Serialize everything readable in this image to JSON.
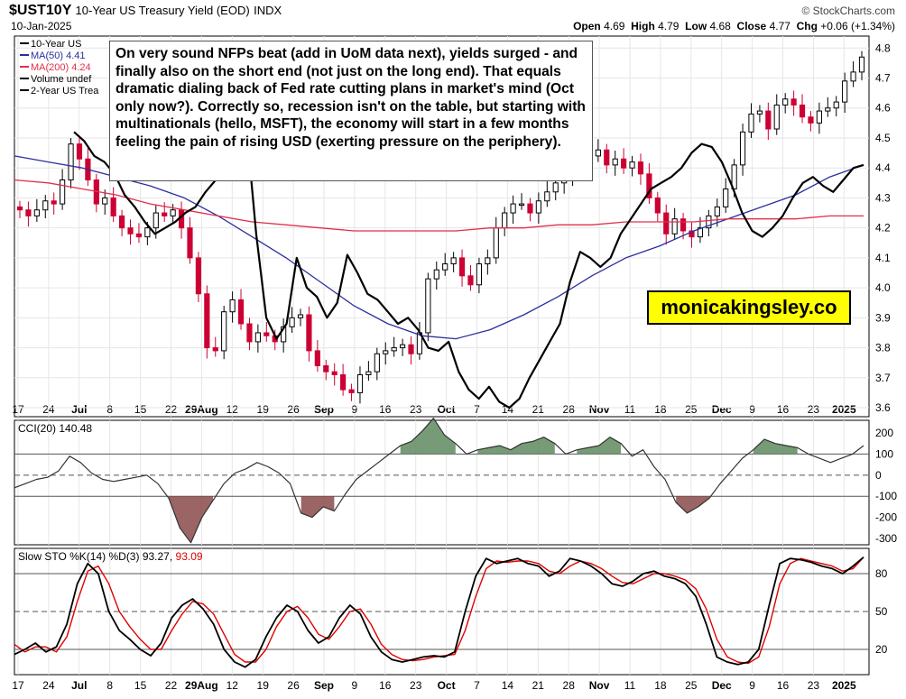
{
  "header": {
    "symbol": "$UST10Y",
    "description": "10-Year US Treasury Yield (EOD)",
    "exchange": "INDX",
    "date": "10-Jan-2025",
    "brand": "© StockCharts.com",
    "open_label": "Open",
    "open": "4.69",
    "high_label": "High",
    "high": "4.79",
    "low_label": "Low",
    "low": "4.68",
    "close_label": "Close",
    "close": "4.77",
    "chg_label": "Chg",
    "chg": "+0.06 (+1.34%)"
  },
  "legend": {
    "price": "10-Year US",
    "ma50": "MA(50) 4.41",
    "ma200": "MA(200) 4.24",
    "volume": "Volume undef",
    "two_year": "2-Year US Trea"
  },
  "annotation": "On very sound NFPs beat (add in UoM data next), yields surged - and finally also on the short end (not just on the long end). That equals dramatic dialing back of Fed rate cutting plans in market's mind (Oct only now?). Correctly so, recession isn't on the table, but starting with multinationals (hello, MSFT), the economy will start in a few months feeling the pain of rising USD (exerting pressure on the periphery).",
  "watermark": "monicakingsley.co",
  "colors": {
    "up": "#000000",
    "down": "#cc0033",
    "ma50": "#2b2f9c",
    "ma200": "#e0304a",
    "two_year": "#000000",
    "cci_fill_pos": "#5f8a5f",
    "cci_fill_neg": "#8a4a4a",
    "sto_k": "#000000",
    "sto_d": "#e00000"
  },
  "chart_data": [
    {
      "type": "candlestick",
      "title": "10-Year US Treasury Yield (EOD)",
      "x_tick_labels": [
        "17",
        "24",
        "Jul",
        "8",
        "15",
        "22",
        "29Aug",
        "12",
        "19",
        "26",
        "Sep",
        "9",
        "16",
        "23",
        "Oct",
        "7",
        "14",
        "21",
        "28",
        "Nov",
        "11",
        "18",
        "25",
        "Dec",
        "9",
        "16",
        "23",
        "2025"
      ],
      "y_ticks": [
        "3.6",
        "3.7",
        "3.8",
        "3.9",
        "4.0",
        "4.1",
        "4.2",
        "4.3",
        "4.4",
        "4.5",
        "4.6",
        "4.7",
        "4.8"
      ],
      "ylim": [
        3.57,
        4.84
      ],
      "series": [
        {
          "name": "10-Year US Treasury Yield (close)",
          "values": [
            4.26,
            4.24,
            4.26,
            4.29,
            4.28,
            4.36,
            4.48,
            4.43,
            4.36,
            4.28,
            4.3,
            4.24,
            4.2,
            4.18,
            4.17,
            4.2,
            4.25,
            4.24,
            4.26,
            4.2,
            4.1,
            3.98,
            3.8,
            3.79,
            3.92,
            3.96,
            3.88,
            3.82,
            3.85,
            3.84,
            3.82,
            3.87,
            3.9,
            3.91,
            3.79,
            3.74,
            3.72,
            3.71,
            3.66,
            3.65,
            3.71,
            3.72,
            3.78,
            3.79,
            3.8,
            3.81,
            3.78,
            3.85,
            4.03,
            4.06,
            4.08,
            4.1,
            4.04,
            4.01,
            4.08,
            4.1,
            4.2,
            4.25,
            4.28,
            4.28,
            4.25,
            4.29,
            4.32,
            4.35,
            4.36,
            4.41,
            4.43,
            4.44,
            4.46,
            4.41,
            4.43,
            4.4,
            4.42,
            4.38,
            4.3,
            4.25,
            4.18,
            4.23,
            4.19,
            4.17,
            4.2,
            4.24,
            4.27,
            4.33,
            4.41,
            4.52,
            4.58,
            4.59,
            4.53,
            4.61,
            4.63,
            4.61,
            4.57,
            4.55,
            4.59,
            4.6,
            4.62,
            4.69,
            4.72,
            4.77
          ]
        },
        {
          "name": "MA(50)",
          "values": [
            4.44,
            4.42,
            4.4,
            4.37,
            4.34,
            4.3,
            4.24,
            4.17,
            4.1,
            4.02,
            3.94,
            3.88,
            3.84,
            3.83,
            3.86,
            3.91,
            3.97,
            4.04,
            4.1,
            4.14,
            4.19,
            4.23,
            4.27,
            4.31,
            4.37,
            4.41
          ]
        },
        {
          "name": "MA(200)",
          "values": [
            4.36,
            4.35,
            4.33,
            4.31,
            4.28,
            4.26,
            4.24,
            4.22,
            4.21,
            4.2,
            4.19,
            4.19,
            4.19,
            4.19,
            4.2,
            4.2,
            4.21,
            4.21,
            4.22,
            4.22,
            4.22,
            4.23,
            4.23,
            4.23,
            4.24,
            4.24
          ]
        },
        {
          "name": "2-Year US Treasury Yield (scaled)",
          "values": [
            4.52,
            4.49,
            4.44,
            4.42,
            4.38,
            4.31,
            4.27,
            4.22,
            4.18,
            4.2,
            4.22,
            4.25,
            4.27,
            4.32,
            4.36,
            4.48,
            4.7,
            4.55,
            4.18,
            3.9,
            3.83,
            3.88,
            4.1,
            4.0,
            3.97,
            3.9,
            3.95,
            4.11,
            4.05,
            3.98,
            3.96,
            3.92,
            3.88,
            3.9,
            3.86,
            3.8,
            3.79,
            3.82,
            3.72,
            3.66,
            3.63,
            3.67,
            3.62,
            3.6,
            3.63,
            3.7,
            3.76,
            3.82,
            3.88,
            4.02,
            4.12,
            4.1,
            4.07,
            4.1,
            4.18,
            4.23,
            4.28,
            4.33,
            4.35,
            4.37,
            4.4,
            4.45,
            4.48,
            4.47,
            4.42,
            4.34,
            4.25,
            4.19,
            4.17,
            4.2,
            4.24,
            4.3,
            4.35,
            4.37,
            4.34,
            4.32,
            4.36,
            4.4,
            4.41
          ]
        }
      ]
    },
    {
      "type": "line",
      "title": "CCI(20) 140.48",
      "y_ticks": [
        "-300",
        "-200",
        "-100",
        "0",
        "100",
        "200"
      ],
      "ylim": [
        -330,
        260
      ],
      "reference_lines": [
        100,
        0,
        -100
      ],
      "series": [
        {
          "name": "CCI(20)",
          "values": [
            -60,
            -40,
            -20,
            -10,
            20,
            90,
            60,
            10,
            -20,
            -30,
            -20,
            -10,
            0,
            -40,
            -110,
            -250,
            -320,
            -200,
            -120,
            -40,
            10,
            30,
            60,
            40,
            10,
            -40,
            -180,
            -200,
            -150,
            -170,
            -90,
            -20,
            20,
            60,
            100,
            140,
            160,
            210,
            270,
            190,
            150,
            100,
            120,
            130,
            140,
            120,
            150,
            160,
            180,
            150,
            100,
            120,
            130,
            140,
            180,
            150,
            90,
            120,
            40,
            -20,
            -130,
            -180,
            -150,
            -110,
            -40,
            20,
            80,
            120,
            170,
            150,
            140,
            130,
            100,
            80,
            60,
            80,
            100,
            140
          ]
        }
      ]
    },
    {
      "type": "line",
      "title": "Slow STO %K(14) %D(3) 93.27, 93.09",
      "y_ticks": [
        "20",
        "50",
        "80"
      ],
      "ylim": [
        0,
        100
      ],
      "reference_lines": [
        80,
        50,
        20
      ],
      "series": [
        {
          "name": "%K(14)",
          "values": [
            16,
            20,
            25,
            18,
            22,
            40,
            72,
            88,
            80,
            50,
            35,
            28,
            20,
            15,
            25,
            45,
            55,
            60,
            52,
            40,
            20,
            10,
            6,
            12,
            30,
            45,
            55,
            50,
            35,
            25,
            30,
            45,
            55,
            48,
            30,
            18,
            12,
            10,
            12,
            14,
            15,
            14,
            18,
            50,
            78,
            92,
            88,
            90,
            92,
            88,
            86,
            78,
            82,
            92,
            90,
            86,
            80,
            72,
            70,
            74,
            80,
            82,
            78,
            76,
            72,
            62,
            40,
            14,
            10,
            8,
            10,
            20,
            55,
            88,
            92,
            91,
            89,
            86,
            84,
            80,
            86,
            93
          ]
        },
        {
          "name": "%D(3)",
          "values": [
            24,
            18,
            22,
            22,
            18,
            30,
            58,
            82,
            86,
            72,
            50,
            38,
            28,
            20,
            20,
            35,
            48,
            58,
            56,
            48,
            32,
            16,
            10,
            10,
            20,
            38,
            50,
            54,
            45,
            32,
            28,
            38,
            50,
            52,
            40,
            24,
            16,
            12,
            11,
            12,
            14,
            15,
            16,
            35,
            62,
            84,
            90,
            89,
            90,
            90,
            88,
            82,
            80,
            86,
            90,
            88,
            84,
            78,
            73,
            72,
            76,
            80,
            80,
            78,
            75,
            68,
            52,
            28,
            14,
            10,
            9,
            14,
            38,
            72,
            88,
            92,
            90,
            88,
            86,
            82,
            84,
            93
          ]
        }
      ]
    }
  ]
}
